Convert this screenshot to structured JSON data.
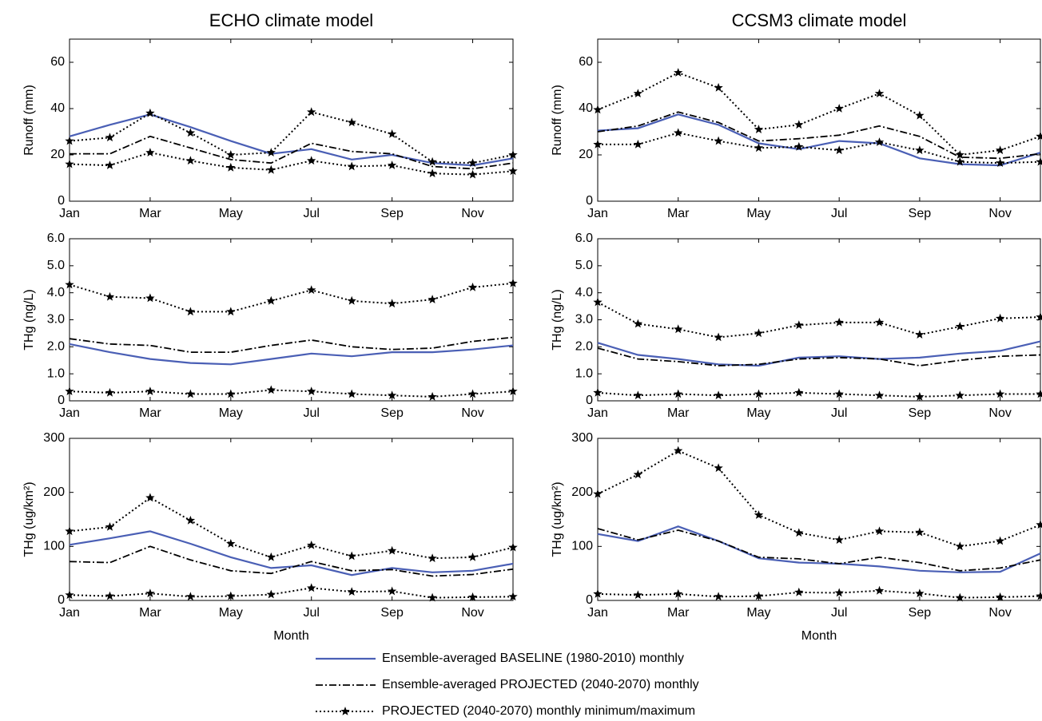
{
  "chart_data": [
    {
      "type": "line",
      "title": "ECHO climate model",
      "ylabel": "Runoff (mm)",
      "categories": [
        "Jan",
        null,
        "Mar",
        null,
        "May",
        null,
        "Jul",
        null,
        "Sep",
        null,
        "Nov",
        null
      ],
      "ylim": [
        0,
        70
      ],
      "yticks": [
        0,
        20,
        40,
        60
      ],
      "series": [
        {
          "color": "#4a5fb5",
          "style": "solid",
          "values": [
            28,
            33,
            37.5,
            32,
            26,
            20.5,
            22.5,
            18,
            20,
            16.5,
            15.5,
            18.5
          ]
        },
        {
          "color": "#000000",
          "style": "dashdot",
          "values": [
            20.5,
            20.5,
            28,
            23,
            18,
            16.5,
            25,
            21.5,
            20.5,
            15,
            14,
            16.5
          ]
        },
        {
          "color": "#000000",
          "style": "dotted-star",
          "values": [
            26,
            27.5,
            38,
            29.5,
            20,
            21,
            38.5,
            34,
            29,
            17,
            16.5,
            20
          ]
        },
        {
          "color": "#000000",
          "style": "dotted-star",
          "values": [
            16,
            15.5,
            21,
            17.5,
            14.5,
            13.5,
            17.5,
            15,
            15.5,
            12,
            11.5,
            13
          ]
        }
      ]
    },
    {
      "type": "line",
      "title": "CCSM3 climate model",
      "ylabel": "Runoff (mm)",
      "categories": [
        "Jan",
        null,
        "Mar",
        null,
        "May",
        null,
        "Jul",
        null,
        "Sep",
        null,
        "Nov",
        null
      ],
      "ylim": [
        0,
        70
      ],
      "yticks": [
        0,
        20,
        40,
        60
      ],
      "series": [
        {
          "color": "#4a5fb5",
          "style": "solid",
          "values": [
            30.5,
            31.5,
            37.5,
            33,
            25,
            22.5,
            26,
            25,
            18.5,
            16,
            15.5,
            21
          ]
        },
        {
          "color": "#000000",
          "style": "dashdot",
          "values": [
            30,
            32.5,
            38.5,
            34,
            26,
            27,
            28.5,
            32.5,
            28,
            19,
            18.5,
            20.5
          ]
        },
        {
          "color": "#000000",
          "style": "dotted-star",
          "values": [
            39.5,
            46.5,
            55.5,
            49,
            31,
            33,
            40,
            46.5,
            37,
            20,
            22,
            28
          ]
        },
        {
          "color": "#000000",
          "style": "dotted-star",
          "values": [
            24.5,
            24.5,
            29.5,
            26,
            23,
            23.5,
            22,
            25.5,
            22,
            17,
            16.5,
            17
          ]
        }
      ]
    },
    {
      "type": "line",
      "ylabel": "THg (ng/L)",
      "categories": [
        "Jan",
        null,
        "Mar",
        null,
        "May",
        null,
        "Jul",
        null,
        "Sep",
        null,
        "Nov",
        null
      ],
      "ylim": [
        0,
        6
      ],
      "yticks": [
        0,
        {
          "value": 1,
          "label": "1.0"
        },
        {
          "value": 2,
          "label": "2.0"
        },
        {
          "value": 3,
          "label": "3.0"
        },
        {
          "value": 4,
          "label": "4.0"
        },
        {
          "value": 5,
          "label": "5.0"
        },
        {
          "value": 6,
          "label": "6.0"
        }
      ],
      "series": [
        {
          "color": "#4a5fb5",
          "style": "solid",
          "values": [
            2.1,
            1.8,
            1.55,
            1.4,
            1.35,
            1.55,
            1.75,
            1.65,
            1.8,
            1.8,
            1.9,
            2.05
          ]
        },
        {
          "color": "#000000",
          "style": "dashdot",
          "values": [
            2.3,
            2.1,
            2.05,
            1.8,
            1.8,
            2.05,
            2.25,
            2.0,
            1.9,
            1.95,
            2.2,
            2.35
          ]
        },
        {
          "color": "#000000",
          "style": "dotted-star",
          "values": [
            4.3,
            3.85,
            3.8,
            3.3,
            3.3,
            3.7,
            4.1,
            3.7,
            3.6,
            3.75,
            4.2,
            4.35
          ]
        },
        {
          "color": "#000000",
          "style": "dotted-star",
          "values": [
            0.35,
            0.3,
            0.35,
            0.25,
            0.25,
            0.4,
            0.35,
            0.25,
            0.2,
            0.15,
            0.25,
            0.35
          ]
        }
      ]
    },
    {
      "type": "line",
      "ylabel": "THg (ng/L)",
      "categories": [
        "Jan",
        null,
        "Mar",
        null,
        "May",
        null,
        "Jul",
        null,
        "Sep",
        null,
        "Nov",
        null
      ],
      "ylim": [
        0,
        6
      ],
      "yticks": [
        0,
        {
          "value": 1,
          "label": "1.0"
        },
        {
          "value": 2,
          "label": "2.0"
        },
        {
          "value": 3,
          "label": "3.0"
        },
        {
          "value": 4,
          "label": "4.0"
        },
        {
          "value": 5,
          "label": "5.0"
        },
        {
          "value": 6,
          "label": "6.0"
        }
      ],
      "series": [
        {
          "color": "#4a5fb5",
          "style": "solid",
          "values": [
            2.15,
            1.7,
            1.55,
            1.35,
            1.3,
            1.6,
            1.65,
            1.55,
            1.6,
            1.75,
            1.85,
            2.2
          ]
        },
        {
          "color": "#000000",
          "style": "dashdot",
          "values": [
            1.95,
            1.55,
            1.45,
            1.3,
            1.35,
            1.55,
            1.6,
            1.55,
            1.3,
            1.5,
            1.65,
            1.7
          ]
        },
        {
          "color": "#000000",
          "style": "dotted-star",
          "values": [
            3.65,
            2.85,
            2.65,
            2.35,
            2.5,
            2.8,
            2.9,
            2.9,
            2.45,
            2.75,
            3.05,
            3.1
          ]
        },
        {
          "color": "#000000",
          "style": "dotted-star",
          "values": [
            0.3,
            0.2,
            0.25,
            0.2,
            0.25,
            0.3,
            0.25,
            0.2,
            0.15,
            0.2,
            0.25,
            0.25
          ]
        }
      ]
    },
    {
      "type": "line",
      "ylabel": "THg (ug/km²)",
      "xlabel": "Month",
      "categories": [
        "Jan",
        null,
        "Mar",
        null,
        "May",
        null,
        "Jul",
        null,
        "Sep",
        null,
        "Nov",
        null
      ],
      "ylim": [
        0,
        300
      ],
      "yticks": [
        0,
        100,
        200,
        300
      ],
      "series": [
        {
          "color": "#4a5fb5",
          "style": "solid",
          "values": [
            103,
            115,
            128,
            105,
            80,
            60,
            65,
            47,
            60,
            52,
            55,
            68
          ]
        },
        {
          "color": "#000000",
          "style": "dashdot",
          "values": [
            72,
            70,
            100,
            75,
            55,
            50,
            72,
            55,
            57,
            45,
            48,
            58
          ]
        },
        {
          "color": "#000000",
          "style": "dotted-star",
          "values": [
            128,
            136,
            190,
            148,
            105,
            80,
            102,
            82,
            92,
            78,
            80,
            98
          ]
        },
        {
          "color": "#000000",
          "style": "dotted-star",
          "values": [
            10,
            8,
            13,
            7,
            8,
            11,
            23,
            16,
            17,
            5,
            6,
            7
          ]
        }
      ]
    },
    {
      "type": "line",
      "ylabel": "THg (ug/km²)",
      "xlabel": "Month",
      "categories": [
        "Jan",
        null,
        "Mar",
        null,
        "May",
        null,
        "Jul",
        null,
        "Sep",
        null,
        "Nov",
        null
      ],
      "ylim": [
        0,
        300
      ],
      "yticks": [
        0,
        100,
        200,
        300
      ],
      "series": [
        {
          "color": "#4a5fb5",
          "style": "solid",
          "values": [
            123,
            110,
            137,
            110,
            78,
            70,
            68,
            63,
            55,
            52,
            53,
            87
          ]
        },
        {
          "color": "#000000",
          "style": "dashdot",
          "values": [
            133,
            112,
            130,
            110,
            80,
            77,
            68,
            80,
            70,
            55,
            60,
            75
          ]
        },
        {
          "color": "#000000",
          "style": "dotted-star",
          "values": [
            197,
            233,
            277,
            245,
            158,
            125,
            112,
            128,
            126,
            100,
            110,
            140
          ]
        },
        {
          "color": "#000000",
          "style": "dotted-star",
          "values": [
            12,
            10,
            12,
            7,
            8,
            15,
            14,
            18,
            13,
            5,
            6,
            8
          ]
        }
      ]
    }
  ],
  "legend": [
    {
      "name": "Ensemble-averaged BASELINE (1980-2010) monthly",
      "color": "#4a5fb5",
      "style": "solid"
    },
    {
      "name": "Ensemble-averaged PROJECTED (2040-2070) monthly",
      "color": "#000000",
      "style": "dashdot"
    },
    {
      "name": "PROJECTED (2040-2070) monthly minimum/maximum",
      "color": "#000000",
      "style": "dotted-star"
    }
  ]
}
